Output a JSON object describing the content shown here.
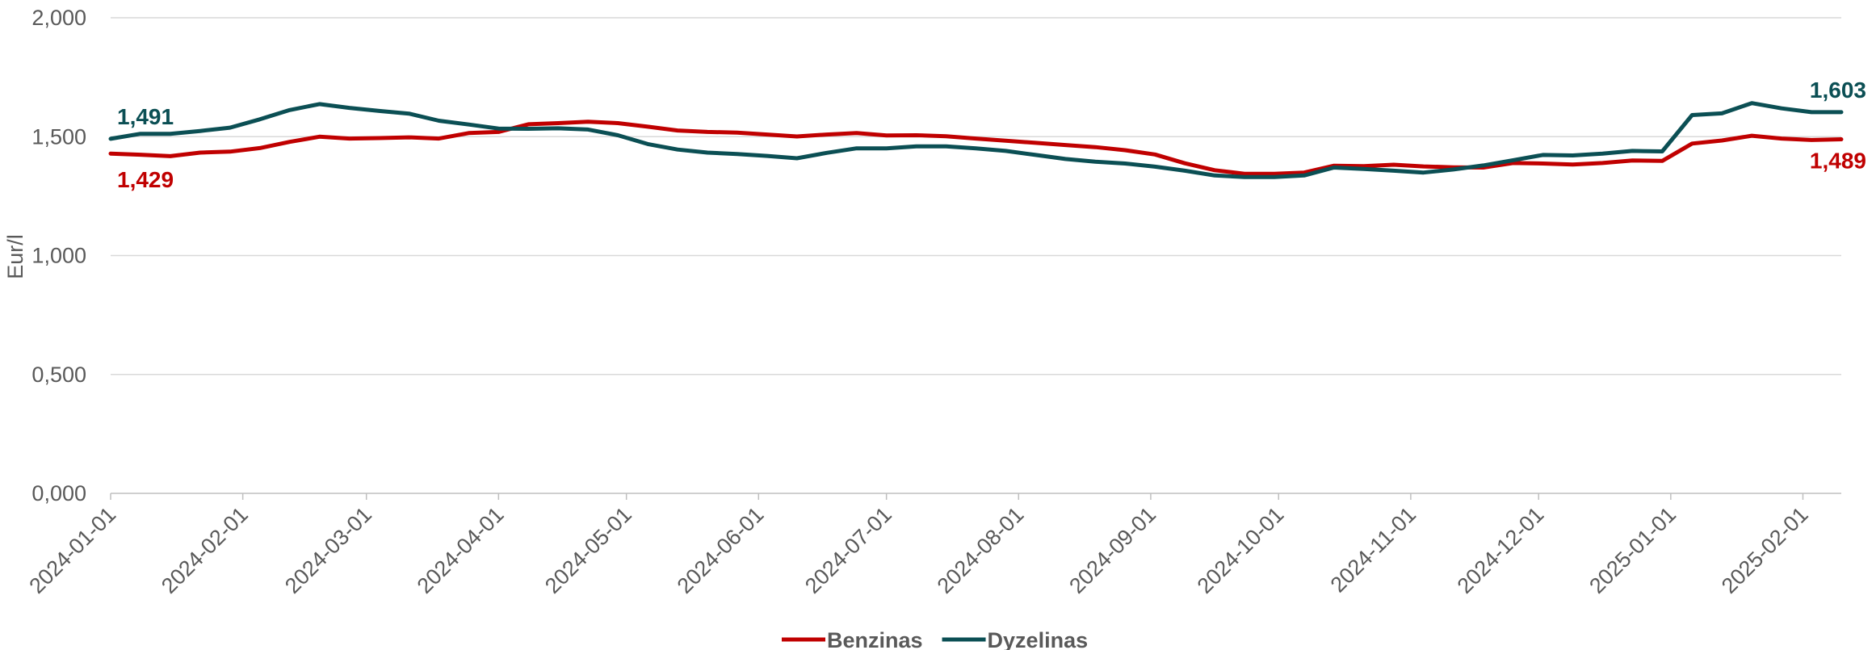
{
  "chart_data": {
    "type": "line",
    "ylabel": "Eur/l",
    "ylim": [
      0,
      2
    ],
    "yticks": [
      "0,000",
      "0,500",
      "1,000",
      "1,500",
      "2,000"
    ],
    "ytick_values": [
      0,
      0.5,
      1,
      1.5,
      2
    ],
    "xlim": [
      "2024-01-01",
      "2025-02-10"
    ],
    "xticks": [
      "2024-01-01",
      "2024-02-01",
      "2024-03-01",
      "2024-04-01",
      "2024-05-01",
      "2024-06-01",
      "2024-07-01",
      "2024-08-01",
      "2024-09-01",
      "2024-10-01",
      "2024-11-01",
      "2024-12-01",
      "2025-01-01",
      "2025-02-01"
    ],
    "grid": true,
    "legend_position": "bottom",
    "x": [
      "2024-01-01",
      "2024-01-08",
      "2024-01-15",
      "2024-01-22",
      "2024-01-29",
      "2024-02-05",
      "2024-02-12",
      "2024-02-19",
      "2024-02-26",
      "2024-03-04",
      "2024-03-11",
      "2024-03-18",
      "2024-03-25",
      "2024-04-01",
      "2024-04-08",
      "2024-04-15",
      "2024-04-22",
      "2024-04-29",
      "2024-05-06",
      "2024-05-13",
      "2024-05-20",
      "2024-05-27",
      "2024-06-03",
      "2024-06-10",
      "2024-06-17",
      "2024-06-24",
      "2024-07-01",
      "2024-07-08",
      "2024-07-15",
      "2024-07-22",
      "2024-07-29",
      "2024-08-05",
      "2024-08-12",
      "2024-08-19",
      "2024-08-26",
      "2024-09-02",
      "2024-09-09",
      "2024-09-16",
      "2024-09-23",
      "2024-09-30",
      "2024-10-07",
      "2024-10-14",
      "2024-10-21",
      "2024-10-28",
      "2024-11-04",
      "2024-11-11",
      "2024-11-18",
      "2024-11-25",
      "2024-12-02",
      "2024-12-09",
      "2024-12-16",
      "2024-12-23",
      "2024-12-30",
      "2025-01-06",
      "2025-01-13",
      "2025-01-20",
      "2025-01-27",
      "2025-02-03",
      "2025-02-10"
    ],
    "series": [
      {
        "name": "Benzinas",
        "color": "#C00000",
        "start_label": "1,429",
        "end_label": "1,489",
        "values": [
          1.429,
          1.424,
          1.418,
          1.433,
          1.437,
          1.452,
          1.478,
          1.5,
          1.492,
          1.494,
          1.497,
          1.492,
          1.515,
          1.52,
          1.552,
          1.557,
          1.563,
          1.557,
          1.542,
          1.526,
          1.52,
          1.517,
          1.509,
          1.501,
          1.509,
          1.515,
          1.505,
          1.506,
          1.502,
          1.492,
          1.483,
          1.474,
          1.465,
          1.456,
          1.443,
          1.425,
          1.388,
          1.359,
          1.344,
          1.344,
          1.349,
          1.378,
          1.376,
          1.382,
          1.375,
          1.371,
          1.37,
          1.389,
          1.387,
          1.383,
          1.389,
          1.4,
          1.398,
          1.471,
          1.484,
          1.504,
          1.492,
          1.486,
          1.489
        ]
      },
      {
        "name": "Dyzelinas",
        "color": "#0B4F54",
        "start_label": "1,491",
        "end_label": "1,603",
        "values": [
          1.491,
          1.512,
          1.512,
          1.524,
          1.538,
          1.573,
          1.612,
          1.637,
          1.621,
          1.608,
          1.597,
          1.567,
          1.551,
          1.534,
          1.533,
          1.535,
          1.53,
          1.506,
          1.469,
          1.446,
          1.433,
          1.427,
          1.419,
          1.409,
          1.432,
          1.451,
          1.451,
          1.459,
          1.459,
          1.451,
          1.44,
          1.423,
          1.406,
          1.395,
          1.387,
          1.374,
          1.357,
          1.337,
          1.33,
          1.33,
          1.337,
          1.37,
          1.364,
          1.357,
          1.349,
          1.362,
          1.379,
          1.401,
          1.423,
          1.421,
          1.429,
          1.44,
          1.438,
          1.591,
          1.598,
          1.641,
          1.619,
          1.603,
          1.603
        ]
      }
    ]
  }
}
